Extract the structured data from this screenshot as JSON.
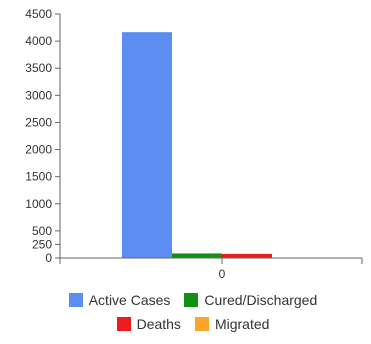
{
  "chart_data": {
    "type": "bar",
    "categories": [
      "0"
    ],
    "series": [
      {
        "name": "Active Cases",
        "values": [
          4165
        ],
        "color": "#5b8ef0"
      },
      {
        "name": "Cured/Discharged",
        "values": [
          84
        ],
        "color": "#119111"
      },
      {
        "name": "Deaths",
        "values": [
          75
        ],
        "color": "#ee1c1c"
      },
      {
        "name": "Migrated",
        "values": [
          0
        ],
        "color": "#f7a52b"
      }
    ],
    "ylim": [
      0,
      4500
    ],
    "y_ticks": [
      0,
      250,
      500,
      1000,
      1500,
      2000,
      2500,
      3000,
      3500,
      4000,
      4500
    ],
    "legend_position": "bottom",
    "grid": false
  },
  "legend": {
    "rows": [
      [
        {
          "label": "Active Cases",
          "color": "#5b8ef0"
        },
        {
          "label": "Cured/Discharged",
          "color": "#119111"
        }
      ],
      [
        {
          "label": "Deaths",
          "color": "#ee1c1c"
        },
        {
          "label": "Migrated",
          "color": "#f7a52b"
        }
      ]
    ]
  }
}
